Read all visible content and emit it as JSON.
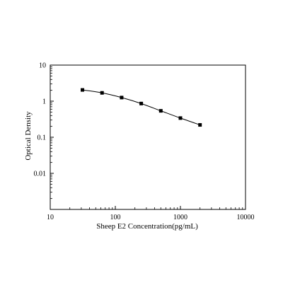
{
  "chart_data": {
    "type": "scatter",
    "xlabel": "Sheep E2 Concentration(pg/mL)",
    "ylabel": "Optical Density",
    "x_scale": "log",
    "y_scale": "log",
    "xlim": [
      10,
      10000
    ],
    "ylim": [
      0.001,
      10
    ],
    "x_ticks": [
      10,
      100,
      1000,
      10000
    ],
    "x_tick_labels": [
      "10",
      "100",
      "1000",
      "10000"
    ],
    "y_ticks": [
      0.01,
      0.1,
      1,
      10
    ],
    "y_tick_labels": [
      "0.01",
      "0.1",
      "1",
      "10"
    ],
    "grid": false,
    "legend": "none",
    "series": [
      {
        "x": [
          31.25,
          62.5,
          125,
          250,
          500,
          1000,
          2000
        ],
        "y": [
          2.05,
          1.7,
          1.26,
          0.86,
          0.54,
          0.34,
          0.22
        ],
        "fit_curve": true
      }
    ],
    "marker_color": "#000000",
    "line_color": "#000000"
  }
}
